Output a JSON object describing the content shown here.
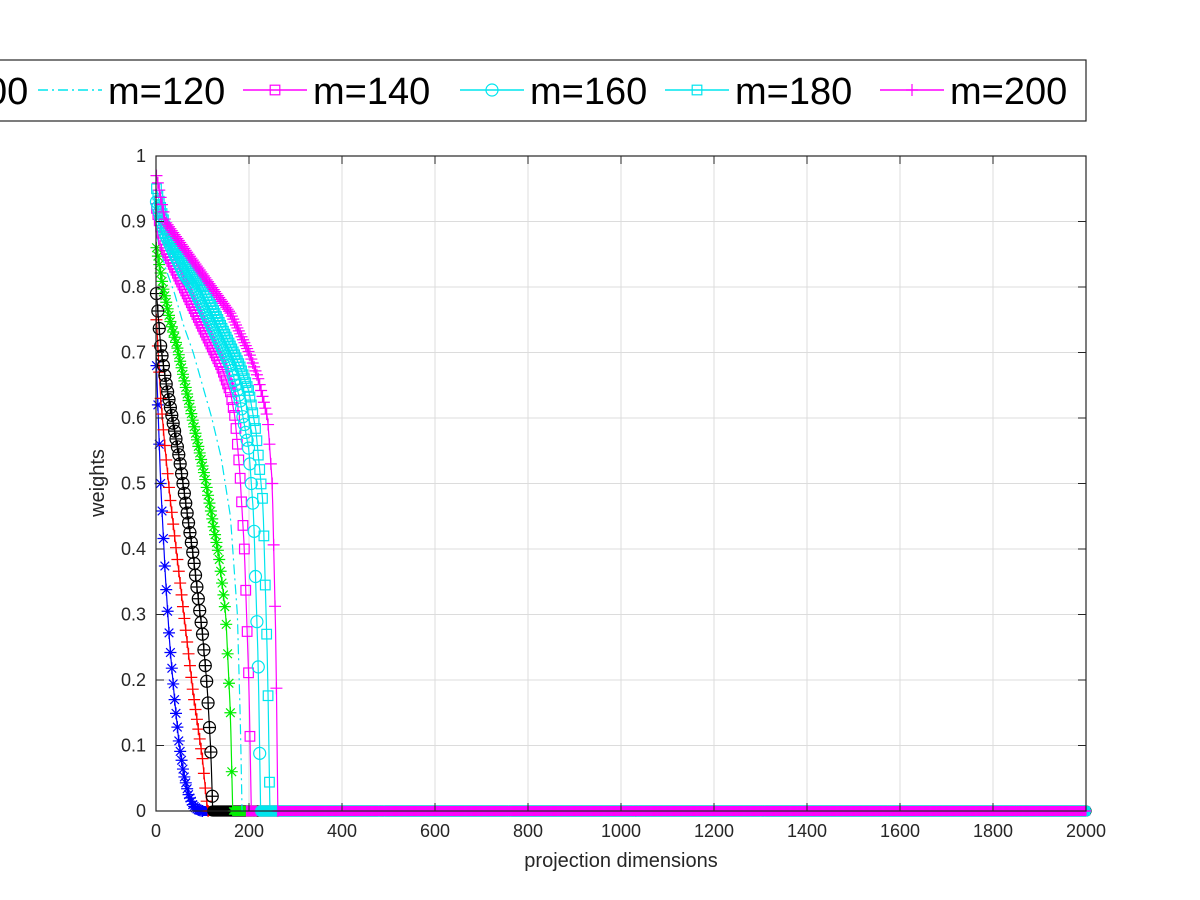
{
  "chart_data": {
    "type": "line",
    "title": "",
    "xlabel": "projection dimensions",
    "ylabel": "weights",
    "xlim": [
      0,
      2000
    ],
    "ylim": [
      0,
      1
    ],
    "xticks": [
      0,
      200,
      400,
      600,
      800,
      1000,
      1200,
      1400,
      1600,
      1800,
      2000
    ],
    "yticks": [
      0,
      0.1,
      0.2,
      0.3,
      0.4,
      0.5,
      0.6,
      0.7,
      0.8,
      0.9,
      1
    ],
    "x_tick_labels": [
      "0",
      "200",
      "400",
      "600",
      "800",
      "1000",
      "1200",
      "1400",
      "1600",
      "1800",
      "2000"
    ],
    "y_tick_labels": [
      "0",
      "0.1",
      "0.2",
      "0.3",
      "0.4",
      "0.5",
      "0.6",
      "0.7",
      "0.8",
      "0.9",
      "1"
    ],
    "grid": true,
    "legend_position": "top",
    "legend_partial_text": "00",
    "series": [
      {
        "color": "#0000ff",
        "marker": "asterisk",
        "line": "solid",
        "x": [
          1,
          10,
          20,
          30,
          40,
          50,
          60,
          70,
          80,
          90,
          100
        ],
        "y": [
          0.68,
          0.5,
          0.36,
          0.25,
          0.17,
          0.1,
          0.055,
          0.025,
          0.008,
          0.002,
          0
        ]
      },
      {
        "color": "#ff0000",
        "marker": "plus",
        "line": "solid",
        "x": [
          1,
          10,
          20,
          30,
          40,
          50,
          60,
          70,
          80,
          90,
          100,
          108,
          112
        ],
        "y": [
          0.75,
          0.63,
          0.55,
          0.48,
          0.42,
          0.36,
          0.3,
          0.24,
          0.18,
          0.13,
          0.08,
          0.02,
          0
        ]
      },
      {
        "color": "#000000",
        "marker": "circle-plus",
        "line": "solid",
        "x": [
          1,
          10,
          20,
          30,
          40,
          50,
          60,
          70,
          80,
          90,
          100,
          110,
          118,
          122
        ],
        "y": [
          0.79,
          0.71,
          0.66,
          0.62,
          0.58,
          0.54,
          0.49,
          0.44,
          0.39,
          0.33,
          0.27,
          0.19,
          0.09,
          0
        ]
      },
      {
        "color": "#00ee00",
        "marker": "asterisk",
        "line": "solid",
        "x": [
          1,
          15,
          30,
          45,
          60,
          75,
          90,
          105,
          120,
          135,
          150,
          160,
          165
        ],
        "y": [
          0.86,
          0.8,
          0.75,
          0.71,
          0.66,
          0.61,
          0.56,
          0.51,
          0.45,
          0.39,
          0.3,
          0.15,
          0
        ]
      },
      {
        "name": "m=120",
        "color": "#00e5ee",
        "marker": "none",
        "line": "dashdot",
        "x": [
          1,
          20,
          40,
          60,
          80,
          100,
          120,
          140,
          160,
          175,
          182,
          185
        ],
        "y": [
          0.88,
          0.83,
          0.79,
          0.74,
          0.7,
          0.65,
          0.6,
          0.54,
          0.45,
          0.3,
          0.12,
          0
        ]
      },
      {
        "name": "m=140",
        "color": "#ff00ff",
        "marker": "square",
        "line": "solid",
        "x": [
          1,
          20,
          40,
          60,
          80,
          100,
          120,
          140,
          160,
          170,
          180,
          190,
          200,
          205
        ],
        "y": [
          0.92,
          0.86,
          0.83,
          0.8,
          0.77,
          0.74,
          0.71,
          0.68,
          0.64,
          0.6,
          0.52,
          0.4,
          0.19,
          0
        ]
      },
      {
        "name": "m=160",
        "color": "#00e5ee",
        "marker": "circle",
        "line": "solid",
        "x": [
          1,
          20,
          40,
          60,
          80,
          100,
          120,
          140,
          160,
          180,
          200,
          210,
          220,
          225
        ],
        "y": [
          0.93,
          0.88,
          0.85,
          0.82,
          0.8,
          0.77,
          0.74,
          0.71,
          0.68,
          0.63,
          0.55,
          0.45,
          0.22,
          0
        ]
      },
      {
        "name": "m=180",
        "color": "#00e5ee",
        "marker": "square",
        "line": "solid",
        "x": [
          1,
          20,
          40,
          60,
          80,
          100,
          120,
          140,
          160,
          180,
          200,
          215,
          230,
          240,
          245
        ],
        "y": [
          0.95,
          0.89,
          0.86,
          0.84,
          0.82,
          0.8,
          0.77,
          0.74,
          0.71,
          0.68,
          0.64,
          0.58,
          0.47,
          0.22,
          0
        ]
      },
      {
        "name": "m=200",
        "color": "#ff00ff",
        "marker": "plus",
        "line": "solid",
        "x": [
          1,
          20,
          40,
          60,
          80,
          100,
          120,
          140,
          160,
          180,
          200,
          220,
          240,
          250,
          258,
          262
        ],
        "y": [
          0.97,
          0.9,
          0.88,
          0.86,
          0.84,
          0.82,
          0.8,
          0.78,
          0.76,
          0.73,
          0.7,
          0.66,
          0.6,
          0.5,
          0.25,
          0
        ]
      }
    ]
  }
}
